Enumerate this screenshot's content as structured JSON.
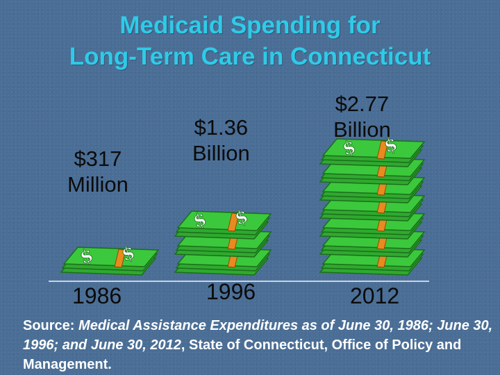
{
  "title": {
    "line1": "Medicaid Spending for",
    "line2": "Long-Term Care in Connecticut"
  },
  "chart_data": {
    "type": "bar",
    "categories": [
      "1986",
      "1996",
      "2012"
    ],
    "values": [
      0.317,
      1.36,
      2.77
    ],
    "value_labels": [
      [
        "$317",
        "Million"
      ],
      [
        "$1.36",
        "Billion"
      ],
      [
        "$2.77",
        "Billion"
      ]
    ]
  },
  "source": {
    "prefix": "Source: ",
    "italic": "Medical Assistance Expenditures as of June 30, 1986; June 30, 1996; and June 30, 2012",
    "suffix": ", State of Connecticut, Office of Policy and Management."
  },
  "colors": {
    "title": "#2ecbe8",
    "money_green": "#3cc83c",
    "money_dark": "#1a6e1a",
    "band": "#e88a1e",
    "source_text": "#ffffff"
  },
  "icons": {
    "bar_mark": "money-stack-icon"
  }
}
